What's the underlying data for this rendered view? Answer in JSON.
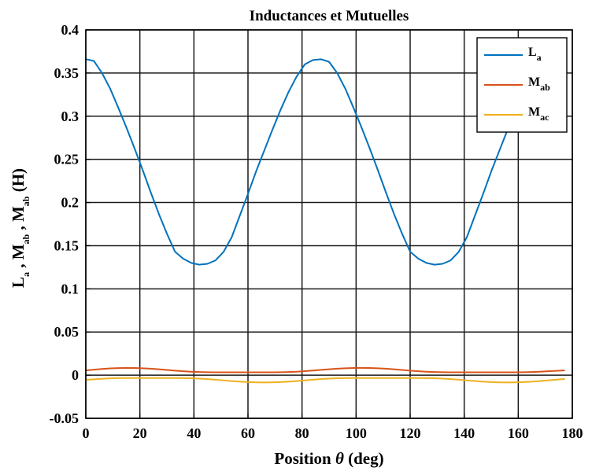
{
  "chart_data": {
    "type": "line",
    "title": "Inductances et Mutuelles",
    "xlabel": "Position θ (deg)",
    "ylabel": "L_a , M_ab , M_ab (H)",
    "xlim": [
      0,
      180
    ],
    "ylim": [
      -0.05,
      0.4
    ],
    "xticks": [
      0,
      20,
      40,
      60,
      80,
      100,
      120,
      140,
      160,
      180
    ],
    "xtick_labels": [
      "0",
      "20",
      "40",
      "60",
      "80",
      "100",
      "120",
      "140",
      "160",
      "180"
    ],
    "yticks": [
      -0.05,
      0,
      0.05,
      0.1,
      0.15,
      0.2,
      0.25,
      0.3,
      0.35,
      0.4
    ],
    "ytick_labels": [
      "-0.05",
      "0",
      "0.05",
      "0.1",
      "0.15",
      "0.2",
      "0.25",
      "0.3",
      "0.35",
      "0.4"
    ],
    "grid": true,
    "legend_position": "top-right",
    "x": [
      0,
      3,
      6,
      9,
      12,
      15,
      18,
      21,
      24,
      27,
      30,
      33,
      36,
      39,
      42,
      45,
      48,
      51,
      54,
      57,
      60,
      63,
      66,
      69,
      72,
      75,
      78,
      81,
      84,
      87,
      90,
      93,
      96,
      99,
      102,
      105,
      108,
      111,
      114,
      117,
      120,
      123,
      126,
      129,
      132,
      135,
      138,
      141,
      144,
      147,
      150,
      153,
      156,
      159,
      162,
      165,
      168,
      171,
      174,
      177
    ],
    "series": [
      {
        "name": "L",
        "sub": "a",
        "color": "#0072BD",
        "values": [
          0.366,
          0.364,
          0.35,
          0.332,
          0.31,
          0.287,
          0.263,
          0.238,
          0.212,
          0.187,
          0.164,
          0.143,
          0.135,
          0.13,
          0.128,
          0.129,
          0.133,
          0.143,
          0.16,
          0.185,
          0.21,
          0.236,
          0.26,
          0.284,
          0.307,
          0.328,
          0.346,
          0.36,
          0.365,
          0.366,
          0.363,
          0.35,
          0.332,
          0.31,
          0.287,
          0.263,
          0.238,
          0.212,
          0.187,
          0.164,
          0.143,
          0.135,
          0.13,
          0.128,
          0.129,
          0.133,
          0.143,
          0.16,
          0.185,
          0.21,
          0.236,
          0.26,
          0.284,
          0.307,
          0.328,
          0.346,
          0.36,
          0.365,
          0.366,
          0.363
        ]
      },
      {
        "name": "M",
        "sub": "ab",
        "color": "#D95319",
        "values": [
          0.0055,
          0.0064,
          0.0072,
          0.0078,
          0.0082,
          0.0084,
          0.0083,
          0.008,
          0.0075,
          0.0068,
          0.006,
          0.0052,
          0.0045,
          0.004,
          0.0036,
          0.0034,
          0.0033,
          0.0033,
          0.0033,
          0.0033,
          0.0033,
          0.0033,
          0.0033,
          0.0033,
          0.0034,
          0.0036,
          0.004,
          0.0046,
          0.0053,
          0.0061,
          0.0068,
          0.0075,
          0.008,
          0.0083,
          0.0084,
          0.0083,
          0.008,
          0.0075,
          0.0068,
          0.006,
          0.0052,
          0.0045,
          0.004,
          0.0036,
          0.0034,
          0.0033,
          0.0033,
          0.0033,
          0.0033,
          0.0033,
          0.0033,
          0.0033,
          0.0033,
          0.0033,
          0.0034,
          0.0036,
          0.004,
          0.0045,
          0.005,
          0.0055
        ]
      },
      {
        "name": "M",
        "sub": "ac",
        "color": "#EDB120",
        "values": [
          -0.0055,
          -0.0048,
          -0.0042,
          -0.0037,
          -0.0034,
          -0.0033,
          -0.0033,
          -0.0033,
          -0.0033,
          -0.0033,
          -0.0033,
          -0.0033,
          -0.0034,
          -0.0036,
          -0.004,
          -0.0046,
          -0.0053,
          -0.0061,
          -0.0068,
          -0.0075,
          -0.008,
          -0.0083,
          -0.0084,
          -0.0083,
          -0.008,
          -0.0075,
          -0.0068,
          -0.006,
          -0.0052,
          -0.0045,
          -0.004,
          -0.0036,
          -0.0034,
          -0.0033,
          -0.0033,
          -0.0033,
          -0.0033,
          -0.0033,
          -0.0033,
          -0.0033,
          -0.0033,
          -0.0033,
          -0.0034,
          -0.0036,
          -0.004,
          -0.0046,
          -0.0053,
          -0.0061,
          -0.0068,
          -0.0075,
          -0.008,
          -0.0083,
          -0.0084,
          -0.0083,
          -0.008,
          -0.0075,
          -0.0068,
          -0.006,
          -0.0052,
          -0.0045
        ]
      }
    ]
  }
}
